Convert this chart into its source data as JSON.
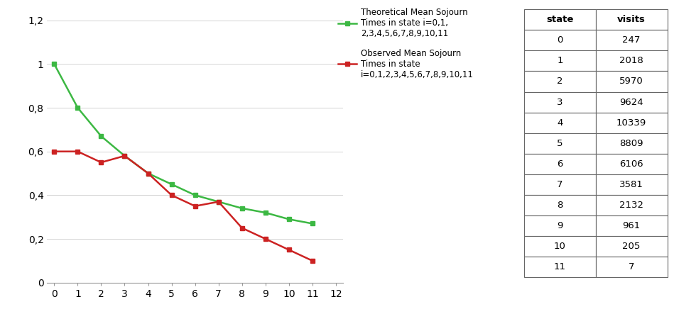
{
  "x": [
    0,
    1,
    2,
    3,
    4,
    5,
    6,
    7,
    8,
    9,
    10,
    11
  ],
  "theoretical": [
    1.0,
    0.8,
    0.67,
    0.58,
    0.5,
    0.45,
    0.4,
    0.37,
    0.34,
    0.32,
    0.29,
    0.27
  ],
  "observed": [
    0.6,
    0.6,
    0.55,
    0.58,
    0.5,
    0.4,
    0.35,
    0.37,
    0.25,
    0.2,
    0.15,
    0.1
  ],
  "theoretical_color": "#3CB843",
  "observed_color": "#CC2222",
  "theoretical_label": "Theoretical Mean Sojourn\nTimes in state i=0,1,\n2,3,4,5,6,7,8,9,10,11",
  "observed_label": "Observed Mean Sojourn\nTimes in state\ni=0,1,2,3,4,5,6,7,8,9,10,11",
  "ylim": [
    0,
    1.25
  ],
  "xlim": [
    -0.3,
    12.3
  ],
  "yticks": [
    0,
    0.2,
    0.4,
    0.6,
    0.8,
    1.0,
    1.2
  ],
  "ytick_labels": [
    "0",
    "0,2",
    "0,4",
    "0,6",
    "0,8",
    "1",
    "1,2"
  ],
  "xticks": [
    0,
    1,
    2,
    3,
    4,
    5,
    6,
    7,
    8,
    9,
    10,
    11,
    12
  ],
  "table_states": [
    0,
    1,
    2,
    3,
    4,
    5,
    6,
    7,
    8,
    9,
    10,
    11
  ],
  "table_visits": [
    247,
    2018,
    5970,
    9624,
    10339,
    8809,
    6106,
    3581,
    2132,
    961,
    205,
    7
  ],
  "table_header_state": "state",
  "table_header_visits": "visits"
}
